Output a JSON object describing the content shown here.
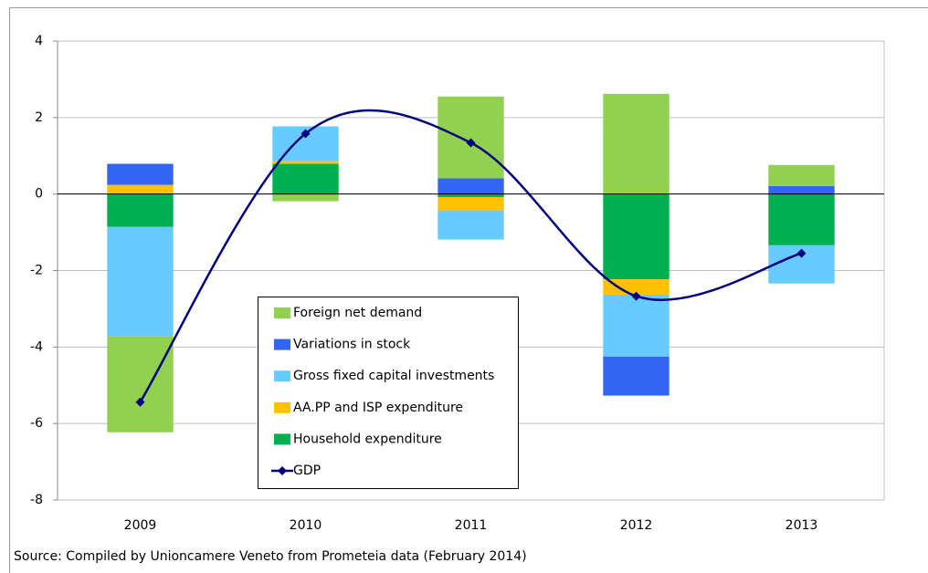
{
  "chart_data": {
    "type": "bar",
    "stacked": true,
    "categories": [
      "2009",
      "2010",
      "2011",
      "2012",
      "2013"
    ],
    "series": [
      {
        "name": "Foreign net demand",
        "color": "#92d050",
        "values": [
          -2.51,
          -0.19,
          2.14,
          2.62,
          0.55
        ]
      },
      {
        "name": "Variations in stock",
        "color": "#3366f0",
        "values": [
          0.55,
          0,
          0.41,
          -1.02,
          0.21
        ]
      },
      {
        "name": "Gross fixed capital investments",
        "color": "#66ccff",
        "values": [
          -2.86,
          0.91,
          -0.76,
          -1.62,
          -1.0
        ]
      },
      {
        "name": "AA.PP and ISP expenditure",
        "color": "#ffc000",
        "values": [
          0.24,
          0.07,
          -0.35,
          -0.4,
          0
        ]
      },
      {
        "name": "Household expenditure",
        "color": "#00b050",
        "values": [
          -0.86,
          0.79,
          -0.08,
          -2.23,
          -1.34
        ]
      },
      {
        "name": "GDP",
        "color": "#000080",
        "type": "line",
        "values": [
          -5.44,
          1.58,
          1.34,
          -2.67,
          -1.55
        ]
      }
    ],
    "ylim": [
      -8,
      4
    ],
    "yticks": [
      -8,
      -6,
      -4,
      -2,
      0,
      2,
      4
    ],
    "grid": true,
    "source": "Source: Compiled by Unioncamere Veneto from Prometeia data (February 2014)"
  }
}
